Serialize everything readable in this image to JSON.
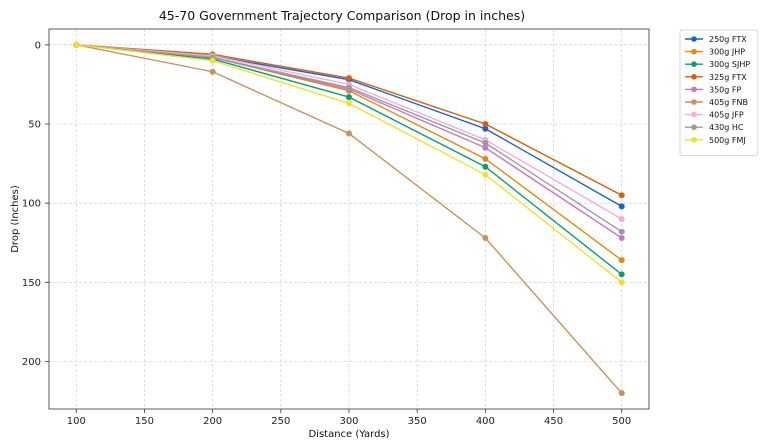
{
  "chart_data": {
    "type": "line",
    "title": "45-70 Government Trajectory Comparison (Drop in inches)",
    "xlabel": "Distance (Yards)",
    "ylabel": "Drop (Inches)",
    "x": [
      100,
      200,
      300,
      400,
      500
    ],
    "xlim": [
      80,
      520
    ],
    "ylim": [
      230,
      -10
    ],
    "y_inverted": true,
    "xticks": [
      100,
      150,
      200,
      250,
      300,
      350,
      400,
      450,
      500
    ],
    "yticks": [
      0,
      50,
      100,
      150,
      200
    ],
    "grid": true,
    "legend_position": "outside-top-right",
    "series": [
      {
        "name": "250g FTX",
        "color": "#1f5fc8",
        "values": [
          0,
          7,
          22,
          53,
          102
        ]
      },
      {
        "name": "300g JHP",
        "color": "#e08a12",
        "values": [
          0,
          8,
          29,
          72,
          136
        ]
      },
      {
        "name": "300g SJHP",
        "color": "#0d9a72",
        "values": [
          0,
          9,
          33,
          77,
          145
        ]
      },
      {
        "name": "325g FTX",
        "color": "#d2610f",
        "values": [
          0,
          6,
          21,
          50,
          95
        ]
      },
      {
        "name": "350g FP",
        "color": "#c678c2",
        "values": [
          0,
          8,
          28,
          65,
          122
        ]
      },
      {
        "name": "405g FNB",
        "color": "#c8915e",
        "values": [
          0,
          17,
          56,
          122,
          220
        ]
      },
      {
        "name": "405g JFP",
        "color": "#f4acdd",
        "values": [
          0,
          7,
          25,
          60,
          110
        ]
      },
      {
        "name": "430g HC",
        "color": "#9b9b9b",
        "values": [
          0,
          8,
          27,
          62,
          118
        ]
      },
      {
        "name": "500g FMJ",
        "color": "#eee135",
        "values": [
          0,
          10,
          37,
          82,
          150
        ]
      }
    ]
  }
}
